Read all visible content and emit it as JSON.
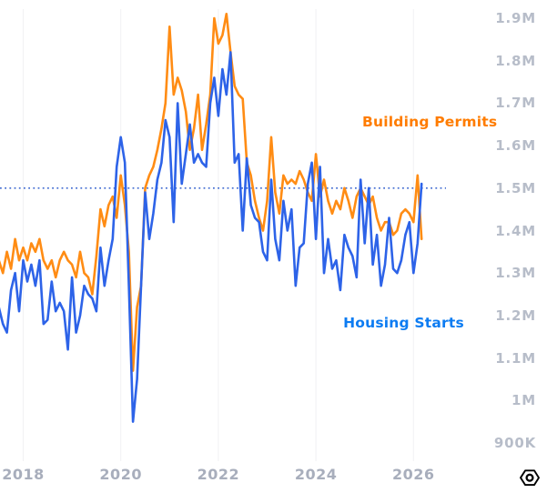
{
  "chart_data": {
    "type": "line",
    "title": "",
    "x_start_month": "2017-07",
    "x_step": "1 month",
    "x_tick_labels": [
      "2018",
      "2020",
      "2022",
      "2024",
      "2026"
    ],
    "x_tick_years": [
      2018,
      2020,
      2022,
      2024,
      2026
    ],
    "y_tick_labels": [
      "1.9M",
      "1.8M",
      "1.7M",
      "1.6M",
      "1.5M",
      "1.4M",
      "1.3M",
      "1.2M",
      "1.1M",
      "1M",
      "900K"
    ],
    "y_tick_values": [
      1.9,
      1.8,
      1.7,
      1.6,
      1.5,
      1.4,
      1.3,
      1.2,
      1.1,
      1.0,
      0.9
    ],
    "ylim": [
      0.88,
      1.93
    ],
    "grid": "vertical-faint",
    "legend_position": "inline-annotations",
    "reference_line": {
      "value": 1.5,
      "style": "dotted",
      "color": "#3f6ad0"
    },
    "series": [
      {
        "name": "Building Permits",
        "color": "#ff8c14",
        "values": [
          1.33,
          1.3,
          1.35,
          1.31,
          1.38,
          1.33,
          1.36,
          1.33,
          1.37,
          1.35,
          1.38,
          1.33,
          1.31,
          1.33,
          1.29,
          1.33,
          1.35,
          1.33,
          1.32,
          1.29,
          1.35,
          1.3,
          1.29,
          1.25,
          1.34,
          1.45,
          1.41,
          1.46,
          1.48,
          1.43,
          1.53,
          1.46,
          1.35,
          1.07,
          1.22,
          1.27,
          1.5,
          1.53,
          1.55,
          1.59,
          1.64,
          1.7,
          1.88,
          1.72,
          1.76,
          1.73,
          1.68,
          1.59,
          1.64,
          1.72,
          1.59,
          1.65,
          1.72,
          1.9,
          1.84,
          1.86,
          1.91,
          1.82,
          1.74,
          1.72,
          1.71,
          1.56,
          1.53,
          1.47,
          1.43,
          1.4,
          1.47,
          1.62,
          1.49,
          1.44,
          1.53,
          1.51,
          1.52,
          1.51,
          1.54,
          1.52,
          1.49,
          1.47,
          1.58,
          1.48,
          1.52,
          1.47,
          1.44,
          1.47,
          1.45,
          1.5,
          1.47,
          1.43,
          1.48,
          1.5,
          1.48,
          1.46,
          1.48,
          1.43,
          1.4,
          1.42,
          1.42,
          1.39,
          1.4,
          1.44,
          1.45,
          1.44,
          1.42,
          1.53,
          1.38
        ]
      },
      {
        "name": "Housing Starts",
        "color": "#2d63e8",
        "values": [
          1.22,
          1.18,
          1.16,
          1.26,
          1.3,
          1.21,
          1.33,
          1.28,
          1.32,
          1.27,
          1.33,
          1.18,
          1.19,
          1.28,
          1.21,
          1.23,
          1.21,
          1.12,
          1.29,
          1.16,
          1.2,
          1.27,
          1.25,
          1.24,
          1.21,
          1.36,
          1.27,
          1.33,
          1.38,
          1.55,
          1.62,
          1.56,
          1.27,
          0.95,
          1.05,
          1.27,
          1.49,
          1.38,
          1.44,
          1.52,
          1.56,
          1.66,
          1.62,
          1.42,
          1.7,
          1.51,
          1.58,
          1.65,
          1.56,
          1.58,
          1.56,
          1.55,
          1.7,
          1.76,
          1.67,
          1.78,
          1.72,
          1.82,
          1.56,
          1.58,
          1.4,
          1.57,
          1.46,
          1.43,
          1.42,
          1.35,
          1.33,
          1.52,
          1.38,
          1.33,
          1.47,
          1.4,
          1.45,
          1.27,
          1.36,
          1.37,
          1.51,
          1.56,
          1.38,
          1.55,
          1.3,
          1.38,
          1.31,
          1.33,
          1.26,
          1.39,
          1.36,
          1.34,
          1.29,
          1.52,
          1.37,
          1.5,
          1.32,
          1.39,
          1.27,
          1.32,
          1.43,
          1.31,
          1.3,
          1.33,
          1.39,
          1.42,
          1.3,
          1.37,
          1.51
        ]
      }
    ],
    "annotations": [
      {
        "text": "Building Permits",
        "color": "#ff7c00",
        "anchor_year": 2024.95,
        "anchor_value": 1.655
      },
      {
        "text": "Housing Starts",
        "color": "#0d7cf2",
        "anchor_year": 2024.56,
        "anchor_value": 1.183
      }
    ]
  },
  "branding": {
    "logo_icon": "hexagon-circle-logo"
  }
}
